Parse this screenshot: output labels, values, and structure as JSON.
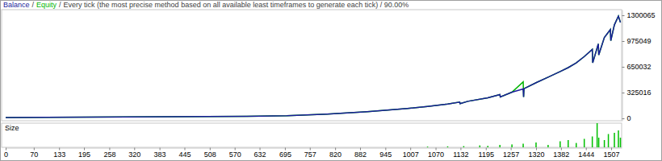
{
  "chart_data": [
    {
      "type": "line",
      "title": "Every tick (the most precise method based on all available least timeframes to generate each tick) / 90.00%",
      "annotations": [
        "/",
        "/"
      ],
      "x": [
        0,
        100,
        200,
        300,
        400,
        500,
        600,
        700,
        800,
        900,
        1000,
        1050,
        1100,
        1130,
        1131,
        1150,
        1200,
        1230,
        1231,
        1260,
        1288,
        1289,
        1290,
        1320,
        1350,
        1380,
        1400,
        1420,
        1440,
        1460,
        1461,
        1475,
        1476,
        1490,
        1505,
        1506,
        1515,
        1525,
        1530
      ],
      "series": [
        {
          "name": "Balance",
          "color": "#1c1c9c",
          "values": [
            10000,
            12000,
            14500,
            17000,
            20000,
            23000,
            27000,
            34000,
            55000,
            85000,
            125000,
            150000,
            180000,
            205000,
            185000,
            215000,
            260000,
            300000,
            270000,
            330000,
            370000,
            270000,
            375000,
            450000,
            520000,
            590000,
            640000,
            700000,
            780000,
            870000,
            700000,
            940000,
            800000,
            1020000,
            1120000,
            980000,
            1180000,
            1290000,
            1210000
          ]
        },
        {
          "name": "Equity",
          "color": "#00b400",
          "values": [
            10000,
            12000,
            14500,
            17000,
            20000,
            23000,
            27000,
            34000,
            55000,
            85000,
            125000,
            150000,
            180000,
            205000,
            185000,
            215000,
            260000,
            300000,
            270000,
            330000,
            460000,
            270000,
            375000,
            450000,
            520000,
            590000,
            640000,
            700000,
            780000,
            870000,
            700000,
            940000,
            800000,
            1020000,
            1120000,
            980000,
            1180000,
            1290000,
            1210000
          ]
        }
      ],
      "xlim": [
        0,
        1533
      ],
      "ylim": [
        -30000,
        1371000
      ],
      "yticks": [
        0,
        325016,
        650032,
        975049,
        1300065
      ],
      "grid": false,
      "tick_labels": "y"
    },
    {
      "type": "bar",
      "title": "Size",
      "color": "#00c000",
      "x": [
        1050,
        1100,
        1140,
        1180,
        1200,
        1230,
        1260,
        1288,
        1320,
        1350,
        1380,
        1400,
        1420,
        1440,
        1460,
        1472,
        1476,
        1490,
        1500,
        1515,
        1525,
        1530
      ],
      "values": [
        3,
        4,
        5,
        8,
        6,
        10,
        12,
        15,
        20,
        10,
        25,
        30,
        18,
        35,
        45,
        100,
        40,
        30,
        55,
        60,
        70,
        40
      ],
      "xlim": [
        0,
        1533
      ],
      "xticks": [
        0,
        70,
        133,
        195,
        258,
        320,
        383,
        445,
        508,
        570,
        632,
        695,
        757,
        820,
        882,
        945,
        1007,
        1070,
        1132,
        1195,
        1257,
        1320,
        1382,
        1444,
        1507
      ],
      "ylim": [
        0,
        100
      ],
      "grid": false,
      "tick_labels": "x"
    }
  ]
}
